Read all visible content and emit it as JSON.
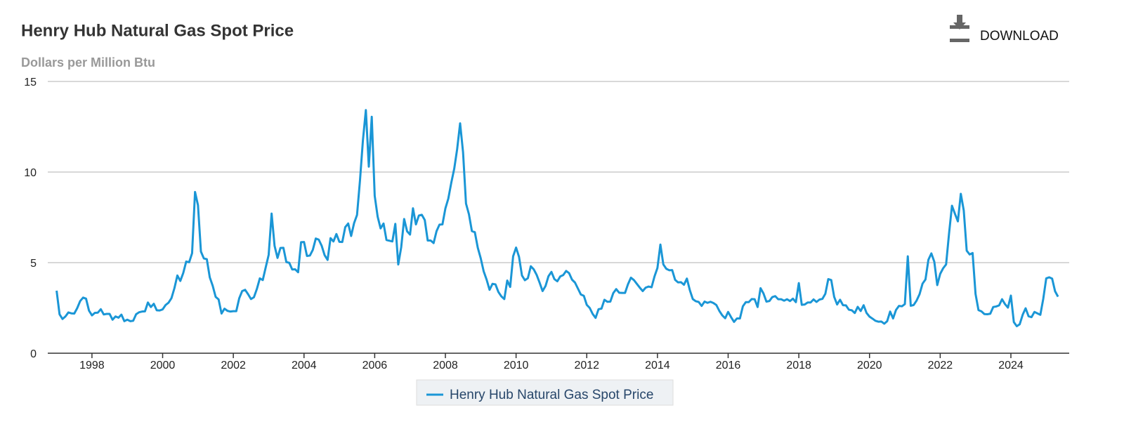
{
  "chart_data": {
    "type": "line",
    "title": "Henry Hub Natural Gas Spot Price",
    "subtitle": "Dollars per Million Btu",
    "x": [
      "1997-01",
      "1997-02",
      "1997-03",
      "1997-04",
      "1997-05",
      "1997-06",
      "1997-07",
      "1997-08",
      "1997-09",
      "1997-10",
      "1997-11",
      "1997-12",
      "1998-01",
      "1998-02",
      "1998-03",
      "1998-04",
      "1998-05",
      "1998-06",
      "1998-07",
      "1998-08",
      "1998-09",
      "1998-10",
      "1998-11",
      "1998-12",
      "1999-01",
      "1999-02",
      "1999-03",
      "1999-04",
      "1999-05",
      "1999-06",
      "1999-07",
      "1999-08",
      "1999-09",
      "1999-10",
      "1999-11",
      "1999-12",
      "2000-01",
      "2000-02",
      "2000-03",
      "2000-04",
      "2000-05",
      "2000-06",
      "2000-07",
      "2000-08",
      "2000-09",
      "2000-10",
      "2000-11",
      "2000-12",
      "2001-01",
      "2001-02",
      "2001-03",
      "2001-04",
      "2001-05",
      "2001-06",
      "2001-07",
      "2001-08",
      "2001-09",
      "2001-10",
      "2001-11",
      "2001-12",
      "2002-01",
      "2002-02",
      "2002-03",
      "2002-04",
      "2002-05",
      "2002-06",
      "2002-07",
      "2002-08",
      "2002-09",
      "2002-10",
      "2002-11",
      "2002-12",
      "2003-01",
      "2003-02",
      "2003-03",
      "2003-04",
      "2003-05",
      "2003-06",
      "2003-07",
      "2003-08",
      "2003-09",
      "2003-10",
      "2003-11",
      "2003-12",
      "2004-01",
      "2004-02",
      "2004-03",
      "2004-04",
      "2004-05",
      "2004-06",
      "2004-07",
      "2004-08",
      "2004-09",
      "2004-10",
      "2004-11",
      "2004-12",
      "2005-01",
      "2005-02",
      "2005-03",
      "2005-04",
      "2005-05",
      "2005-06",
      "2005-07",
      "2005-08",
      "2005-09",
      "2005-10",
      "2005-11",
      "2005-12",
      "2006-01",
      "2006-02",
      "2006-03",
      "2006-04",
      "2006-05",
      "2006-06",
      "2006-07",
      "2006-08",
      "2006-09",
      "2006-10",
      "2006-11",
      "2006-12",
      "2007-01",
      "2007-02",
      "2007-03",
      "2007-04",
      "2007-05",
      "2007-06",
      "2007-07",
      "2007-08",
      "2007-09",
      "2007-10",
      "2007-11",
      "2007-12",
      "2008-01",
      "2008-02",
      "2008-03",
      "2008-04",
      "2008-05",
      "2008-06",
      "2008-07",
      "2008-08",
      "2008-09",
      "2008-10",
      "2008-11",
      "2008-12",
      "2009-01",
      "2009-02",
      "2009-03",
      "2009-04",
      "2009-05",
      "2009-06",
      "2009-07",
      "2009-08",
      "2009-09",
      "2009-10",
      "2009-11",
      "2009-12",
      "2010-01",
      "2010-02",
      "2010-03",
      "2010-04",
      "2010-05",
      "2010-06",
      "2010-07",
      "2010-08",
      "2010-09",
      "2010-10",
      "2010-11",
      "2010-12",
      "2011-01",
      "2011-02",
      "2011-03",
      "2011-04",
      "2011-05",
      "2011-06",
      "2011-07",
      "2011-08",
      "2011-09",
      "2011-10",
      "2011-11",
      "2011-12",
      "2012-01",
      "2012-02",
      "2012-03",
      "2012-04",
      "2012-05",
      "2012-06",
      "2012-07",
      "2012-08",
      "2012-09",
      "2012-10",
      "2012-11",
      "2012-12",
      "2013-01",
      "2013-02",
      "2013-03",
      "2013-04",
      "2013-05",
      "2013-06",
      "2013-07",
      "2013-08",
      "2013-09",
      "2013-10",
      "2013-11",
      "2013-12",
      "2014-01",
      "2014-02",
      "2014-03",
      "2014-04",
      "2014-05",
      "2014-06",
      "2014-07",
      "2014-08",
      "2014-09",
      "2014-10",
      "2014-11",
      "2014-12",
      "2015-01",
      "2015-02",
      "2015-03",
      "2015-04",
      "2015-05",
      "2015-06",
      "2015-07",
      "2015-08",
      "2015-09",
      "2015-10",
      "2015-11",
      "2015-12",
      "2016-01",
      "2016-02",
      "2016-03",
      "2016-04",
      "2016-05",
      "2016-06",
      "2016-07",
      "2016-08",
      "2016-09",
      "2016-10",
      "2016-11",
      "2016-12",
      "2017-01",
      "2017-02",
      "2017-03",
      "2017-04",
      "2017-05",
      "2017-06",
      "2017-07",
      "2017-08",
      "2017-09",
      "2017-10",
      "2017-11",
      "2017-12",
      "2018-01",
      "2018-02",
      "2018-03",
      "2018-04",
      "2018-05",
      "2018-06",
      "2018-07",
      "2018-08",
      "2018-09",
      "2018-10",
      "2018-11",
      "2018-12",
      "2019-01",
      "2019-02",
      "2019-03",
      "2019-04",
      "2019-05",
      "2019-06",
      "2019-07",
      "2019-08",
      "2019-09",
      "2019-10",
      "2019-11",
      "2019-12",
      "2020-01",
      "2020-02",
      "2020-03",
      "2020-04",
      "2020-05",
      "2020-06",
      "2020-07",
      "2020-08",
      "2020-09",
      "2020-10",
      "2020-11",
      "2020-12",
      "2021-01",
      "2021-02",
      "2021-03",
      "2021-04",
      "2021-05",
      "2021-06",
      "2021-07",
      "2021-08",
      "2021-09",
      "2021-10",
      "2021-11",
      "2021-12",
      "2022-01",
      "2022-02",
      "2022-03",
      "2022-04",
      "2022-05",
      "2022-06",
      "2022-07",
      "2022-08",
      "2022-09",
      "2022-10",
      "2022-11",
      "2022-12",
      "2023-01",
      "2023-02",
      "2023-03",
      "2023-04",
      "2023-05",
      "2023-06",
      "2023-07",
      "2023-08",
      "2023-09",
      "2023-10",
      "2023-11",
      "2023-12",
      "2024-01",
      "2024-02",
      "2024-03",
      "2024-04",
      "2024-05",
      "2024-06",
      "2024-07",
      "2024-08",
      "2024-09",
      "2024-10",
      "2024-11",
      "2024-12",
      "2025-01",
      "2025-02",
      "2025-03",
      "2025-04",
      "2025-05"
    ],
    "series": [
      {
        "name": "Henry Hub Natural Gas Spot Price",
        "color": "#1a96d6",
        "values": [
          3.45,
          2.15,
          1.89,
          2.03,
          2.25,
          2.2,
          2.19,
          2.49,
          2.88,
          3.07,
          3.01,
          2.35,
          2.09,
          2.23,
          2.24,
          2.43,
          2.14,
          2.17,
          2.17,
          1.85,
          2.03,
          1.96,
          2.13,
          1.77,
          1.85,
          1.77,
          1.79,
          2.15,
          2.26,
          2.3,
          2.31,
          2.8,
          2.55,
          2.73,
          2.37,
          2.36,
          2.42,
          2.66,
          2.79,
          3.04,
          3.59,
          4.29,
          3.99,
          4.43,
          5.06,
          5.02,
          5.52,
          8.9,
          8.17,
          5.61,
          5.23,
          5.19,
          4.19,
          3.72,
          3.11,
          2.97,
          2.19,
          2.46,
          2.34,
          2.3,
          2.32,
          2.32,
          3.03,
          3.43,
          3.5,
          3.26,
          2.99,
          3.09,
          3.55,
          4.13,
          4.04,
          4.74,
          5.43,
          7.71,
          5.93,
          5.26,
          5.81,
          5.82,
          5.03,
          4.99,
          4.62,
          4.63,
          4.47,
          6.13,
          6.14,
          5.37,
          5.39,
          5.71,
          6.33,
          6.27,
          5.93,
          5.41,
          5.15,
          6.35,
          6.17,
          6.58,
          6.15,
          6.14,
          6.96,
          7.16,
          6.47,
          7.18,
          7.63,
          9.53,
          11.75,
          13.42,
          10.3,
          13.05,
          8.69,
          7.54,
          6.89,
          7.16,
          6.25,
          6.21,
          6.17,
          7.14,
          4.9,
          5.85,
          7.41,
          6.73,
          6.55,
          8.0,
          7.11,
          7.6,
          7.64,
          7.35,
          6.22,
          6.22,
          6.08,
          6.74,
          7.1,
          7.11,
          7.99,
          8.54,
          9.41,
          10.18,
          11.27,
          12.69,
          11.09,
          8.26,
          7.67,
          6.74,
          6.68,
          5.82,
          5.24,
          4.52,
          4.06,
          3.5,
          3.83,
          3.8,
          3.38,
          3.14,
          2.99,
          4.01,
          3.66,
          5.35,
          5.83,
          5.32,
          4.29,
          4.03,
          4.14,
          4.8,
          4.63,
          4.32,
          3.89,
          3.43,
          3.71,
          4.25,
          4.49,
          4.09,
          3.97,
          4.24,
          4.31,
          4.54,
          4.42,
          4.06,
          3.9,
          3.57,
          3.24,
          3.17,
          2.67,
          2.5,
          2.17,
          1.95,
          2.43,
          2.46,
          2.95,
          2.84,
          2.85,
          3.32,
          3.54,
          3.34,
          3.33,
          3.33,
          3.81,
          4.17,
          4.04,
          3.83,
          3.62,
          3.43,
          3.62,
          3.68,
          3.64,
          4.24,
          4.71,
          6.0,
          4.9,
          4.66,
          4.58,
          4.59,
          4.05,
          3.91,
          3.92,
          3.78,
          4.12,
          3.48,
          2.99,
          2.87,
          2.83,
          2.61,
          2.85,
          2.78,
          2.84,
          2.77,
          2.66,
          2.34,
          2.09,
          1.93,
          2.28,
          1.99,
          1.73,
          1.92,
          1.92,
          2.59,
          2.82,
          2.82,
          2.99,
          2.98,
          2.55,
          3.59,
          3.3,
          2.85,
          2.88,
          3.1,
          3.15,
          2.98,
          2.98,
          2.9,
          2.98,
          2.88,
          3.01,
          2.82,
          3.87,
          2.67,
          2.69,
          2.8,
          2.8,
          2.97,
          2.83,
          2.96,
          3.0,
          3.28,
          4.09,
          4.04,
          3.11,
          2.69,
          2.95,
          2.65,
          2.64,
          2.4,
          2.37,
          2.22,
          2.56,
          2.33,
          2.65,
          2.22,
          2.02,
          1.91,
          1.79,
          1.74,
          1.75,
          1.63,
          1.77,
          2.3,
          1.92,
          2.39,
          2.61,
          2.59,
          2.71,
          5.35,
          2.62,
          2.66,
          2.91,
          3.26,
          3.84,
          4.07,
          5.16,
          5.51,
          5.05,
          3.76,
          4.38,
          4.69,
          4.9,
          6.6,
          8.14,
          7.7,
          7.28,
          8.8,
          7.88,
          5.66,
          5.45,
          5.53,
          3.27,
          2.38,
          2.31,
          2.16,
          2.15,
          2.18,
          2.55,
          2.58,
          2.64,
          2.98,
          2.71,
          2.52,
          3.18,
          1.72,
          1.49,
          1.6,
          2.12,
          2.48,
          2.04,
          1.99,
          2.28,
          2.2,
          2.12,
          3.01,
          4.13,
          4.19,
          4.12,
          3.42,
          3.12
        ]
      }
    ],
    "xlim": [
      1996.75,
      2025.65
    ],
    "xticks": [
      1998,
      2000,
      2002,
      2004,
      2006,
      2008,
      2010,
      2012,
      2014,
      2016,
      2018,
      2020,
      2022,
      2024
    ],
    "ylim": [
      0,
      15
    ],
    "yticks": [
      0,
      5,
      10,
      15
    ],
    "grid": true,
    "legend": "bottom"
  },
  "download_label": "DOWNLOAD"
}
